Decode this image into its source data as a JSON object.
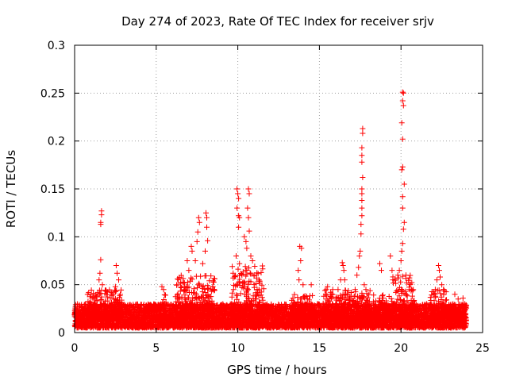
{
  "chart_data": {
    "type": "scatter",
    "title": "Day 274 of 2023, Rate Of TEC Index for receiver srjv",
    "xlabel": "GPS time / hours",
    "ylabel": "ROTI / TECUs",
    "xlim": [
      0,
      25
    ],
    "ylim": [
      0,
      0.3
    ],
    "xticks": [
      "0",
      "5",
      "10",
      "15",
      "20",
      "25"
    ],
    "yticks": [
      "0",
      "0.05",
      "0.1",
      "0.15",
      "0.2",
      "0.25",
      "0.3"
    ],
    "grid": true,
    "marker": "+",
    "color": "#ff0000",
    "baseline": {
      "x_range": [
        0,
        24
      ],
      "y_min": 0.005,
      "y_max": 0.03
    },
    "notable_points": [
      [
        1.65,
        0.127
      ],
      [
        1.65,
        0.123
      ],
      [
        1.6,
        0.115
      ],
      [
        1.6,
        0.113
      ],
      [
        1.6,
        0.076
      ],
      [
        1.55,
        0.062
      ],
      [
        1.5,
        0.055
      ],
      [
        1.7,
        0.05
      ],
      [
        2.55,
        0.07
      ],
      [
        2.6,
        0.062
      ],
      [
        2.7,
        0.055
      ],
      [
        2.5,
        0.048
      ],
      [
        5.35,
        0.048
      ],
      [
        5.45,
        0.045
      ],
      [
        6.9,
        0.075
      ],
      [
        7.0,
        0.065
      ],
      [
        7.15,
        0.09
      ],
      [
        7.2,
        0.085
      ],
      [
        7.4,
        0.075
      ],
      [
        7.6,
        0.12
      ],
      [
        7.65,
        0.115
      ],
      [
        7.55,
        0.105
      ],
      [
        7.5,
        0.095
      ],
      [
        7.85,
        0.072
      ],
      [
        8.05,
        0.125
      ],
      [
        8.1,
        0.12
      ],
      [
        8.1,
        0.11
      ],
      [
        8.15,
        0.096
      ],
      [
        8.0,
        0.085
      ],
      [
        9.95,
        0.15
      ],
      [
        10.0,
        0.145
      ],
      [
        10.05,
        0.14
      ],
      [
        9.95,
        0.13
      ],
      [
        10.05,
        0.122
      ],
      [
        10.1,
        0.12
      ],
      [
        10.05,
        0.11
      ],
      [
        9.9,
        0.08
      ],
      [
        10.1,
        0.072
      ],
      [
        10.4,
        0.1
      ],
      [
        10.5,
        0.095
      ],
      [
        10.55,
        0.088
      ],
      [
        10.65,
        0.15
      ],
      [
        10.7,
        0.145
      ],
      [
        10.6,
        0.13
      ],
      [
        10.65,
        0.12
      ],
      [
        10.7,
        0.106
      ],
      [
        10.8,
        0.08
      ],
      [
        10.9,
        0.075
      ],
      [
        11.0,
        0.06
      ],
      [
        11.3,
        0.055
      ],
      [
        13.8,
        0.09
      ],
      [
        13.9,
        0.088
      ],
      [
        13.85,
        0.075
      ],
      [
        13.7,
        0.065
      ],
      [
        13.75,
        0.055
      ],
      [
        14.0,
        0.05
      ],
      [
        14.5,
        0.05
      ],
      [
        15.5,
        0.048
      ],
      [
        16.3,
        0.055
      ],
      [
        16.4,
        0.073
      ],
      [
        16.45,
        0.07
      ],
      [
        16.5,
        0.065
      ],
      [
        16.55,
        0.055
      ],
      [
        17.3,
        0.06
      ],
      [
        17.4,
        0.068
      ],
      [
        17.45,
        0.08
      ],
      [
        17.5,
        0.085
      ],
      [
        17.55,
        0.103
      ],
      [
        17.55,
        0.113
      ],
      [
        17.6,
        0.122
      ],
      [
        17.6,
        0.13
      ],
      [
        17.6,
        0.138
      ],
      [
        17.6,
        0.145
      ],
      [
        17.6,
        0.15
      ],
      [
        17.65,
        0.162
      ],
      [
        17.6,
        0.178
      ],
      [
        17.6,
        0.185
      ],
      [
        17.6,
        0.193
      ],
      [
        17.65,
        0.208
      ],
      [
        17.65,
        0.213
      ],
      [
        17.75,
        0.05
      ],
      [
        17.85,
        0.045
      ],
      [
        18.7,
        0.072
      ],
      [
        18.8,
        0.065
      ],
      [
        19.35,
        0.08
      ],
      [
        19.45,
        0.065
      ],
      [
        19.5,
        0.055
      ],
      [
        19.8,
        0.06
      ],
      [
        19.9,
        0.065
      ],
      [
        20.0,
        0.075
      ],
      [
        20.05,
        0.085
      ],
      [
        20.1,
        0.093
      ],
      [
        20.15,
        0.108
      ],
      [
        20.2,
        0.115
      ],
      [
        20.1,
        0.13
      ],
      [
        20.1,
        0.142
      ],
      [
        20.2,
        0.155
      ],
      [
        20.05,
        0.17
      ],
      [
        20.1,
        0.173
      ],
      [
        20.1,
        0.202
      ],
      [
        20.05,
        0.219
      ],
      [
        20.15,
        0.237
      ],
      [
        20.1,
        0.242
      ],
      [
        20.15,
        0.25
      ],
      [
        20.1,
        0.251
      ],
      [
        20.3,
        0.06
      ],
      [
        20.35,
        0.052
      ],
      [
        20.5,
        0.045
      ],
      [
        22.1,
        0.045
      ],
      [
        22.2,
        0.055
      ],
      [
        22.3,
        0.07
      ],
      [
        22.35,
        0.065
      ],
      [
        22.4,
        0.058
      ],
      [
        22.5,
        0.05
      ],
      [
        22.6,
        0.045
      ],
      [
        23.3,
        0.04
      ],
      [
        23.5,
        0.035
      ],
      [
        23.8,
        0.036
      ]
    ],
    "activity_regions": [
      [
        0.8,
        2.9,
        0.045
      ],
      [
        5.2,
        5.6,
        0.04
      ],
      [
        6.2,
        8.6,
        0.06
      ],
      [
        9.6,
        11.6,
        0.07
      ],
      [
        13.3,
        14.6,
        0.04
      ],
      [
        15.2,
        16.8,
        0.045
      ],
      [
        16.8,
        18.2,
        0.045
      ],
      [
        18.3,
        19.5,
        0.04
      ],
      [
        19.5,
        20.8,
        0.06
      ],
      [
        21.8,
        22.8,
        0.045
      ],
      [
        22.8,
        24.0,
        0.03
      ]
    ]
  }
}
